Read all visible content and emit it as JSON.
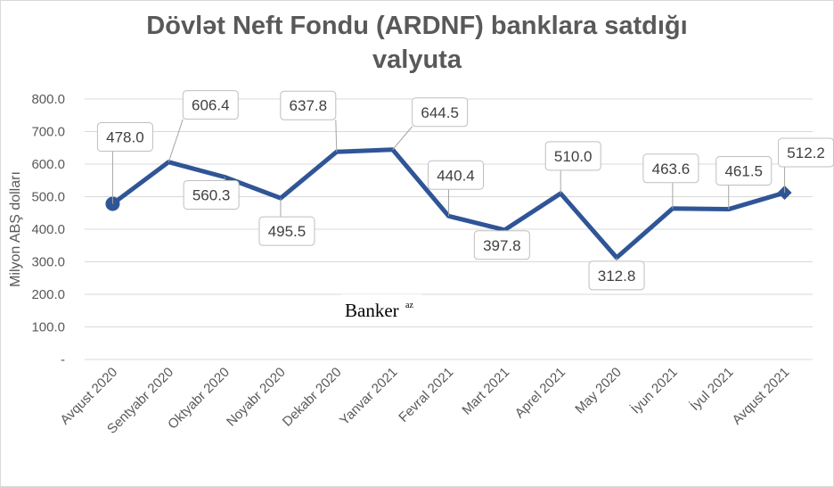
{
  "chart_data": {
    "type": "line",
    "title_line1": "Dövlət Neft Fondu (ARDNF) banklara satdığı",
    "title_line2": "valyuta",
    "ylabel": "Milyon ABŞ dolları",
    "xlabel": "",
    "ylim": [
      0,
      800
    ],
    "yticks": [
      "-",
      "100.0",
      "200.0",
      "300.0",
      "400.0",
      "500.0",
      "600.0",
      "700.0",
      "800.0"
    ],
    "categories": [
      "Avqust  2020",
      "Sentyabr  2020",
      "Oktyabr  2020",
      "Noyabr 2020",
      "Dekabr  2020",
      "Yanvar 2021",
      "Fevral  2021",
      "Mart  2021",
      "Aprel  2021",
      "May 2020",
      "İyun  2021",
      "İyul  2021",
      "Avqust  2021"
    ],
    "values": [
      478.0,
      606.4,
      560.3,
      495.5,
      637.8,
      644.5,
      440.4,
      397.8,
      510.0,
      312.8,
      463.6,
      461.5,
      512.2
    ],
    "value_labels": [
      "478.0",
      "606.4",
      "560.3",
      "495.5",
      "637.8",
      "644.5",
      "440.4",
      "397.8",
      "510.0",
      "312.8",
      "463.6",
      "461.5",
      "512.2"
    ],
    "grid": true,
    "line_color": "#2f5597",
    "grid_color": "#d9d9d9"
  },
  "watermark": {
    "text": "Banker",
    "sup": "az"
  }
}
